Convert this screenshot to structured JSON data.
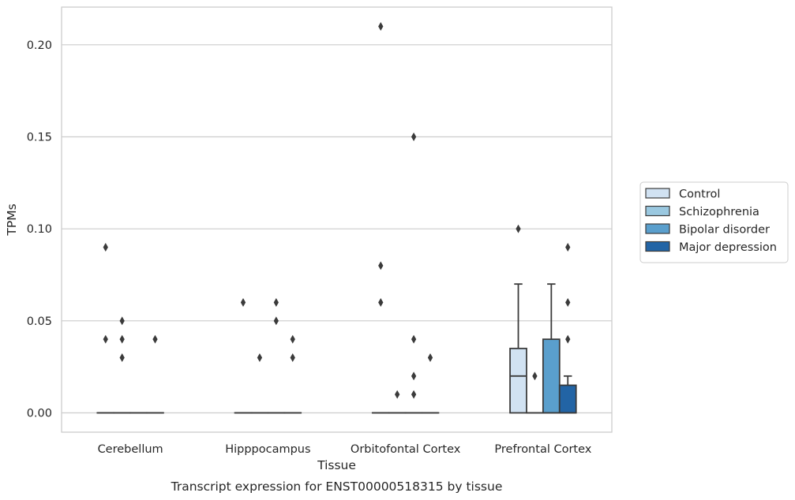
{
  "caption": "Transcript expression for ENST00000518315 by tissue",
  "chart_data": {
    "type": "box",
    "xlabel": "Tissue",
    "ylabel": "TPMs",
    "ylim": [
      -0.0105,
      0.2205
    ],
    "yticks": [
      0.0,
      0.05,
      0.1,
      0.15,
      0.2
    ],
    "ytick_labels": [
      "0.00",
      "0.05",
      "0.10",
      "0.15",
      "0.20"
    ],
    "grid": "horizontal",
    "legend_position": "right",
    "categories": [
      "Cerebellum",
      "Hipppocampus",
      "Orbitofontal Cortex",
      "Prefrontal Cortex"
    ],
    "series": [
      {
        "name": "Control",
        "color": "#d1e2f2",
        "boxes": [
          {
            "q1": 0.0,
            "median": 0.0,
            "q3": 0.0,
            "whislo": 0.0,
            "whishi": 0.0,
            "fliers": [
              0.09,
              0.04
            ]
          },
          {
            "q1": 0.0,
            "median": 0.0,
            "q3": 0.0,
            "whislo": 0.0,
            "whishi": 0.0,
            "fliers": [
              0.06
            ]
          },
          {
            "q1": 0.0,
            "median": 0.0,
            "q3": 0.0,
            "whislo": 0.0,
            "whishi": 0.0,
            "fliers": [
              0.21,
              0.08,
              0.06
            ]
          },
          {
            "q1": 0.0,
            "median": 0.02,
            "q3": 0.035,
            "whislo": 0.0,
            "whishi": 0.07,
            "fliers": [
              0.1
            ]
          }
        ]
      },
      {
        "name": "Schizophrenia",
        "color": "#9ac8e0",
        "boxes": [
          {
            "q1": 0.0,
            "median": 0.0,
            "q3": 0.0,
            "whislo": 0.0,
            "whishi": 0.0,
            "fliers": [
              0.05,
              0.04,
              0.03
            ]
          },
          {
            "q1": 0.0,
            "median": 0.0,
            "q3": 0.0,
            "whislo": 0.0,
            "whishi": 0.0,
            "fliers": [
              0.03
            ]
          },
          {
            "q1": 0.0,
            "median": 0.0,
            "q3": 0.0,
            "whislo": 0.0,
            "whishi": 0.0,
            "fliers": [
              0.01
            ]
          },
          {
            "q1": 0.0,
            "median": 0.0,
            "q3": 0.0,
            "whislo": 0.0,
            "whishi": 0.0,
            "fliers": [
              0.02
            ]
          }
        ]
      },
      {
        "name": "Bipolar disorder",
        "color": "#5a9fcd",
        "boxes": [
          {
            "q1": 0.0,
            "median": 0.0,
            "q3": 0.0,
            "whislo": 0.0,
            "whishi": 0.0,
            "fliers": []
          },
          {
            "q1": 0.0,
            "median": 0.0,
            "q3": 0.0,
            "whislo": 0.0,
            "whishi": 0.0,
            "fliers": [
              0.06,
              0.05
            ]
          },
          {
            "q1": 0.0,
            "median": 0.0,
            "q3": 0.0,
            "whislo": 0.0,
            "whishi": 0.0,
            "fliers": [
              0.15,
              0.04,
              0.02,
              0.01
            ]
          },
          {
            "q1": 0.0,
            "median": 0.0,
            "q3": 0.04,
            "whislo": 0.0,
            "whishi": 0.07,
            "fliers": []
          }
        ]
      },
      {
        "name": "Major depression",
        "color": "#2264a5",
        "boxes": [
          {
            "q1": 0.0,
            "median": 0.0,
            "q3": 0.0,
            "whislo": 0.0,
            "whishi": 0.0,
            "fliers": [
              0.04
            ]
          },
          {
            "q1": 0.0,
            "median": 0.0,
            "q3": 0.0,
            "whislo": 0.0,
            "whishi": 0.0,
            "fliers": [
              0.04,
              0.03
            ]
          },
          {
            "q1": 0.0,
            "median": 0.0,
            "q3": 0.0,
            "whislo": 0.0,
            "whishi": 0.0,
            "fliers": [
              0.03
            ]
          },
          {
            "q1": 0.0,
            "median": 0.0,
            "q3": 0.015,
            "whislo": 0.0,
            "whishi": 0.02,
            "fliers": [
              0.09,
              0.06,
              0.04
            ]
          }
        ]
      }
    ]
  }
}
